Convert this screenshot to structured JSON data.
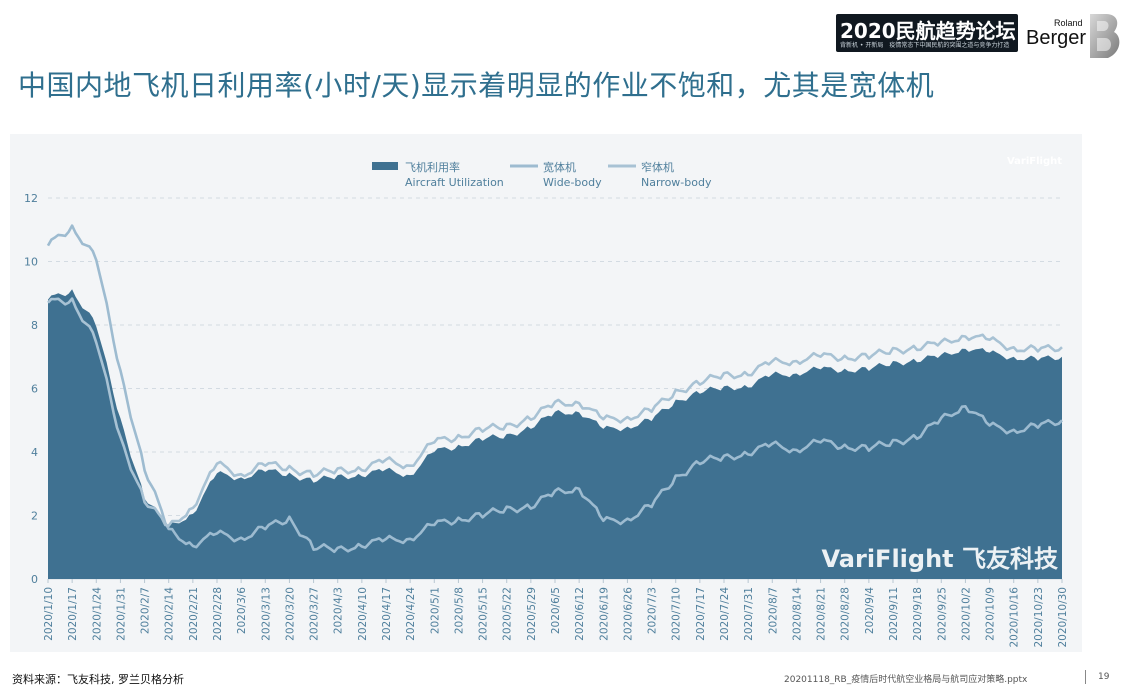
{
  "header": {
    "title": "中国内地飞机日利用率(小时/天)显示着明显的作业不饱和，尤其是宽体机",
    "event_logo_main": "2020民航趋势论坛",
    "event_logo_sub": "背新机 • 开新局　疫情常态下中国民航的突围之道与竞争力打造",
    "brand_line1": "Roland",
    "brand_line2": "Berger"
  },
  "chart_data": {
    "type": "area",
    "watermark": "VariFlight 飞友科技",
    "watermark_small": "VariFlight",
    "ylim": [
      0,
      12
    ],
    "yticks": [
      "0",
      "2",
      "4",
      "6",
      "8",
      "10",
      "12"
    ],
    "grid": true,
    "legend_position": "top-center",
    "legend": [
      {
        "cn": "飞机利用率",
        "en": "Aircraft Utilization",
        "color": "#3f7191",
        "kind": "area"
      },
      {
        "cn": "宽体机",
        "en": "Wide-body",
        "color": "#9dbbd0",
        "kind": "line"
      },
      {
        "cn": "窄体机",
        "en": "Narrow-body",
        "color": "#a8c2d4",
        "kind": "line"
      }
    ],
    "x_start": "2020/1/10",
    "x": [
      "2020/1/10",
      "2020/1/17",
      "2020/1/24",
      "2020/1/31",
      "2020/2/7",
      "2020/2/14",
      "2020/2/21",
      "2020/2/28",
      "2020/3/6",
      "2020/3/13",
      "2020/3/20",
      "2020/3/27",
      "2020/4/3",
      "2020/4/10",
      "2020/4/17",
      "2020/4/24",
      "2020/5/1",
      "2020/5/8",
      "2020/5/15",
      "2020/5/22",
      "2020/5/29",
      "2020/6/5",
      "2020/6/12",
      "2020/6/19",
      "2020/6/26",
      "2020/7/3",
      "2020/7/10",
      "2020/7/17",
      "2020/7/24",
      "2020/7/31",
      "2020/8/7",
      "2020/8/14",
      "2020/8/21",
      "2020/8/28",
      "2020/9/4",
      "2020/9/11",
      "2020/9/18",
      "2020/9/25",
      "2020/10/2",
      "2020/10/9",
      "2020/10/16",
      "2020/10/23",
      "2020/10/30"
    ],
    "series": [
      {
        "name": "飞机利用率 Aircraft Utilization",
        "values": [
          8.8,
          9.1,
          8.0,
          5.0,
          2.6,
          1.6,
          2.1,
          3.3,
          3.2,
          3.4,
          3.3,
          3.1,
          3.2,
          3.3,
          3.4,
          3.3,
          4.0,
          4.2,
          4.4,
          4.5,
          4.8,
          5.2,
          5.3,
          4.7,
          4.8,
          5.0,
          5.6,
          5.9,
          6.0,
          6.1,
          6.4,
          6.5,
          6.6,
          6.6,
          6.6,
          6.8,
          6.9,
          7.0,
          7.3,
          7.1,
          7.0,
          6.9,
          7.0
        ]
      },
      {
        "name": "宽体机 Wide-body",
        "values": [
          10.5,
          11.1,
          10.1,
          6.5,
          3.5,
          1.5,
          1.1,
          1.4,
          1.3,
          1.6,
          1.9,
          1.0,
          0.9,
          1.1,
          1.2,
          1.3,
          1.7,
          1.9,
          2.0,
          2.2,
          2.3,
          2.7,
          2.9,
          1.8,
          1.9,
          2.3,
          3.2,
          3.7,
          3.8,
          4.0,
          4.2,
          4.1,
          4.3,
          4.2,
          4.1,
          4.3,
          4.5,
          5.0,
          5.5,
          4.8,
          4.7,
          4.8,
          5.0
        ]
      },
      {
        "name": "窄体机 Narrow-body",
        "values": [
          8.7,
          8.8,
          7.5,
          4.4,
          2.5,
          1.6,
          2.3,
          3.6,
          3.3,
          3.6,
          3.5,
          3.3,
          3.4,
          3.5,
          3.7,
          3.6,
          4.3,
          4.5,
          4.7,
          4.8,
          5.1,
          5.5,
          5.6,
          5.0,
          5.1,
          5.3,
          5.9,
          6.2,
          6.4,
          6.5,
          6.8,
          6.9,
          7.0,
          7.0,
          7.0,
          7.2,
          7.3,
          7.4,
          7.7,
          7.5,
          7.3,
          7.2,
          7.3
        ]
      }
    ]
  },
  "footer": {
    "source": "资料来源：飞友科技, 罗兰贝格分析",
    "file": "20201118_RB_疫情后时代航空业格局与航司应对策略.pptx",
    "page": "19"
  }
}
